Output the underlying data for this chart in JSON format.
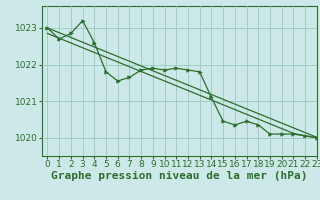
{
  "bg_color": "#cce8e8",
  "grid_color": "#99ccbb",
  "line_color": "#2d6e2d",
  "xlim": [
    -0.5,
    23
  ],
  "ylim": [
    1019.5,
    1023.6
  ],
  "yticks": [
    1020,
    1021,
    1022,
    1023
  ],
  "xticks": [
    0,
    1,
    2,
    3,
    4,
    5,
    6,
    7,
    8,
    9,
    10,
    11,
    12,
    13,
    14,
    15,
    16,
    17,
    18,
    19,
    20,
    21,
    22,
    23
  ],
  "y_zigzag": [
    1023.0,
    1022.7,
    1022.85,
    1023.2,
    1022.6,
    1021.8,
    1021.55,
    1021.65,
    1021.85,
    1021.9,
    1021.85,
    1021.9,
    1021.85,
    1021.8,
    1021.1,
    1020.45,
    1020.35,
    1020.45,
    1020.35,
    1020.1,
    1020.1,
    1020.1,
    1020.05,
    1020.0
  ],
  "y_line_low": [
    1022.85,
    1022.72,
    1022.59,
    1022.46,
    1022.33,
    1022.2,
    1022.07,
    1021.94,
    1021.81,
    1021.68,
    1021.55,
    1021.42,
    1021.29,
    1021.16,
    1021.03,
    1020.9,
    1020.77,
    1020.64,
    1020.51,
    1020.38,
    1020.25,
    1020.12,
    1020.05,
    1020.0
  ],
  "y_line_high": [
    1023.0,
    1022.87,
    1022.74,
    1022.61,
    1022.48,
    1022.35,
    1022.22,
    1022.09,
    1021.96,
    1021.83,
    1021.7,
    1021.57,
    1021.44,
    1021.31,
    1021.18,
    1021.05,
    1020.92,
    1020.79,
    1020.66,
    1020.53,
    1020.4,
    1020.27,
    1020.14,
    1020.01
  ],
  "xlabel": "Graphe pression niveau de la mer (hPa)",
  "xlabel_fontsize": 8,
  "tick_fontsize": 6.5
}
